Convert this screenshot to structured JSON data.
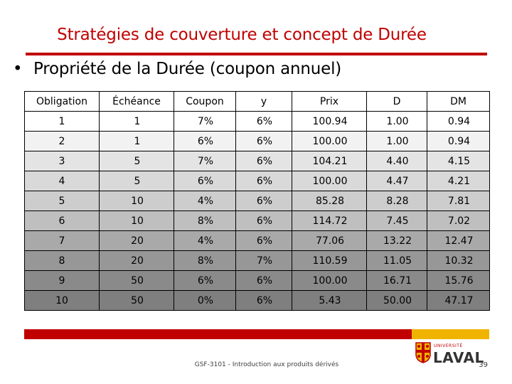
{
  "slide": {
    "title": "Stratégies de couverture et concept de Durée",
    "bullet": "Propriété de la Durée (coupon annuel)",
    "bullet_marker": "•"
  },
  "table": {
    "headers": [
      "Obligation",
      "Échéance",
      "Coupon",
      "y",
      "Prix",
      "D",
      "DM"
    ],
    "rows": [
      {
        "cells": [
          "1",
          "1",
          "7%",
          "6%",
          "100.94",
          "1.00",
          "0.94"
        ],
        "bg": "#ffffff"
      },
      {
        "cells": [
          "2",
          "1",
          "6%",
          "6%",
          "100.00",
          "1.00",
          "0.94"
        ],
        "bg": "#f2f2f2"
      },
      {
        "cells": [
          "3",
          "5",
          "7%",
          "6%",
          "104.21",
          "4.40",
          "4.15"
        ],
        "bg": "#e4e4e4"
      },
      {
        "cells": [
          "4",
          "5",
          "6%",
          "6%",
          "100.00",
          "4.47",
          "4.21"
        ],
        "bg": "#d9d9d9"
      },
      {
        "cells": [
          "5",
          "10",
          "4%",
          "6%",
          "85.28",
          "8.28",
          "7.81"
        ],
        "bg": "#cdcdcd"
      },
      {
        "cells": [
          "6",
          "10",
          "8%",
          "6%",
          "114.72",
          "7.45",
          "7.02"
        ],
        "bg": "#bfbfbf"
      },
      {
        "cells": [
          "7",
          "20",
          "4%",
          "6%",
          "77.06",
          "13.22",
          "12.47"
        ],
        "bg": "#a9a9a9"
      },
      {
        "cells": [
          "8",
          "20",
          "8%",
          "7%",
          "110.59",
          "11.05",
          "10.32"
        ],
        "bg": "#979797"
      },
      {
        "cells": [
          "9",
          "50",
          "6%",
          "6%",
          "100.00",
          "16.71",
          "15.76"
        ],
        "bg": "#8a8a8a"
      },
      {
        "cells": [
          "10",
          "50",
          "0%",
          "6%",
          "5.43",
          "50.00",
          "47.17"
        ],
        "bg": "#7f7f7f"
      }
    ]
  },
  "footer": {
    "course": "GSF-3101 - Introduction aux produits dérivés",
    "page_number": "39",
    "logo_top": "UNIVERSITÉ",
    "logo_name": "LAVAL",
    "bar_colors": {
      "red": "#c00000",
      "gold": "#f0b400"
    }
  }
}
